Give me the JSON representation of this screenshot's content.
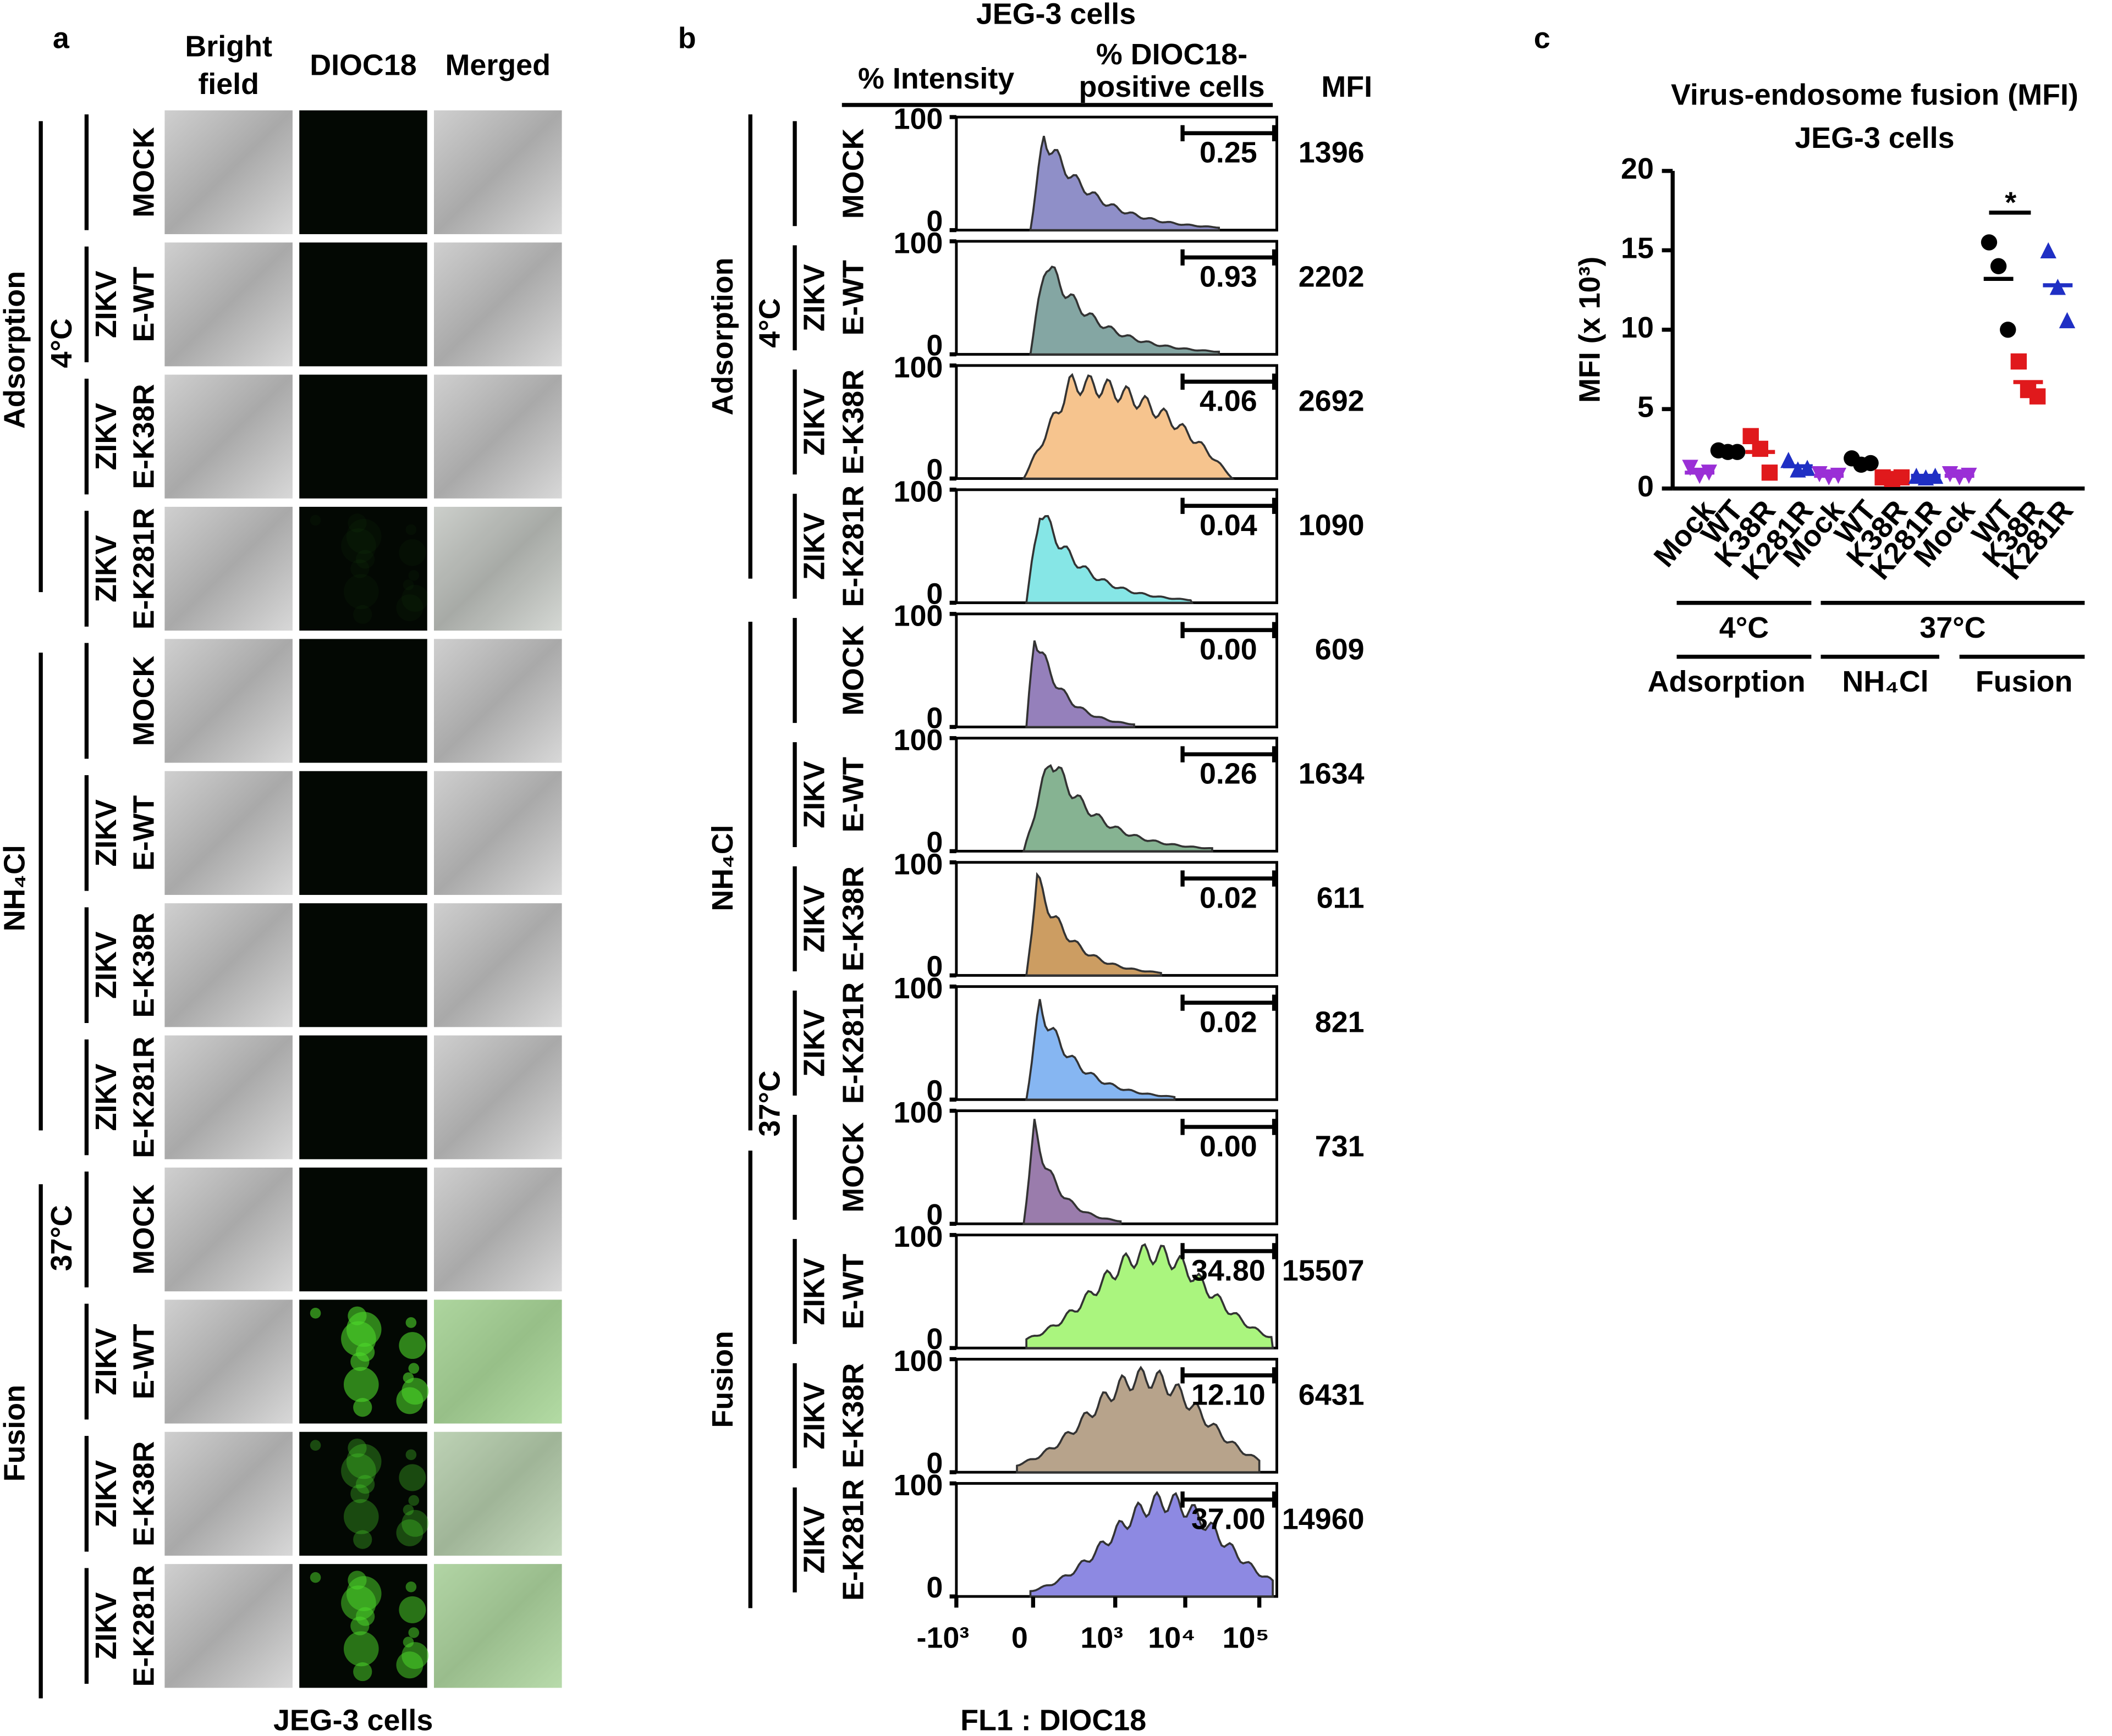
{
  "panel_a": {
    "label": "a",
    "columns": [
      [
        "Bright",
        "field"
      ],
      [
        "DIOC18"
      ],
      [
        "Merged"
      ]
    ],
    "rows": [
      [
        "MOCK"
      ],
      [
        "ZIKV",
        "E-WT"
      ],
      [
        "ZIKV",
        "E-K38R"
      ],
      [
        "ZIKV",
        "E-K281R"
      ],
      [
        "MOCK"
      ],
      [
        "ZIKV",
        "E-WT"
      ],
      [
        "ZIKV",
        "E-K38R"
      ],
      [
        "ZIKV",
        "E-K281R"
      ],
      [
        "MOCK"
      ],
      [
        "ZIKV",
        "E-WT"
      ],
      [
        "ZIKV",
        "E-K38R"
      ],
      [
        "ZIKV",
        "E-K281R"
      ]
    ],
    "groups": [
      "Adsorption",
      "NH₄Cl",
      "Fusion"
    ],
    "temperatures": [
      "4°C",
      "37°C"
    ],
    "footer": "JEG-3 cells"
  },
  "panel_b": {
    "label": "b",
    "title": "JEG-3 cells",
    "header_intensity": "% Intensity",
    "header_positive": [
      "% DIOC18-",
      "positive cells"
    ],
    "header_mfi": "MFI",
    "rows": [
      {
        "label": [
          "MOCK"
        ],
        "percent": "0.25",
        "mfi": 1396,
        "color": "#8f8fc8"
      },
      {
        "label": [
          "ZIKV",
          "E-WT"
        ],
        "percent": "0.93",
        "mfi": 2202,
        "color": "#84a6a3"
      },
      {
        "label": [
          "ZIKV",
          "E-K38R"
        ],
        "percent": "4.06",
        "mfi": 2692,
        "color": "#f6c48e"
      },
      {
        "label": [
          "ZIKV",
          "E-K281R"
        ],
        "percent": "0.04",
        "mfi": 1090,
        "color": "#86e6e6"
      },
      {
        "label": [
          "MOCK"
        ],
        "percent": "0.00",
        "mfi": 609,
        "color": "#9580bb"
      },
      {
        "label": [
          "ZIKV",
          "E-WT"
        ],
        "percent": "0.26",
        "mfi": 1634,
        "color": "#86b392"
      },
      {
        "label": [
          "ZIKV",
          "E-K38R"
        ],
        "percent": "0.02",
        "mfi": 611,
        "color": "#cc9d62"
      },
      {
        "label": [
          "ZIKV",
          "E-K281R"
        ],
        "percent": "0.02",
        "mfi": 821,
        "color": "#86b6f2"
      },
      {
        "label": [
          "MOCK"
        ],
        "percent": "0.00",
        "mfi": 731,
        "color": "#9a7cac"
      },
      {
        "label": [
          "ZIKV",
          "E-WT"
        ],
        "percent": "34.80",
        "mfi": 15507,
        "color": "#aaf57e"
      },
      {
        "label": [
          "ZIKV",
          "E-K38R"
        ],
        "percent": "12.10",
        "mfi": 6431,
        "color": "#b7a38b"
      },
      {
        "label": [
          "ZIKV",
          "E-K281R"
        ],
        "percent": "37.00",
        "mfi": 14960,
        "color": "#8d89e2"
      }
    ],
    "yticks": [
      100,
      0
    ],
    "xticks": [
      "-10³",
      "0",
      "10³",
      "10⁴",
      "10⁵"
    ],
    "xlabel": "FL1 : DIOC18",
    "groups": [
      "Adsorption",
      "NH₄Cl",
      "Fusion"
    ],
    "temperatures": [
      "4°C",
      "37°C"
    ]
  },
  "chart_data": {
    "type": "scatter",
    "label": "c",
    "title": [
      "Virus-endosome fusion (MFI)",
      "JEG-3 cells"
    ],
    "ylabel": "MFI (x 10³)",
    "ylim": [
      0,
      20
    ],
    "yticks": [
      0,
      5,
      10,
      15,
      20
    ],
    "categories": [
      "Mock",
      "WT",
      "K38R",
      "K281R",
      "Mock",
      "WT",
      "K38R",
      "K281R",
      "Mock",
      "WT",
      "K38R",
      "K281R"
    ],
    "points": [
      [
        1.3,
        0.8,
        1.0
      ],
      [
        2.4,
        2.3,
        2.3
      ],
      [
        3.3,
        2.5,
        1.0
      ],
      [
        1.8,
        1.2,
        1.3
      ],
      [
        0.9,
        0.7,
        0.8
      ],
      [
        1.9,
        1.5,
        1.6
      ],
      [
        0.7,
        0.6,
        0.7
      ],
      [
        0.8,
        0.7,
        0.8
      ],
      [
        0.9,
        0.7,
        0.8
      ],
      [
        15.5,
        14.0,
        10.0
      ],
      [
        8.0,
        6.2,
        5.8
      ],
      [
        15.0,
        12.7,
        10.6
      ]
    ],
    "means": [
      1.0,
      2.3,
      2.3,
      1.4,
      0.8,
      1.7,
      0.7,
      0.8,
      0.8,
      13.2,
      6.7,
      12.8
    ],
    "colors": [
      "#9a2fd6",
      "#000000",
      "#e0191c",
      "#1f2fc4",
      "#9a2fd6",
      "#000000",
      "#e0191c",
      "#1f2fc4",
      "#9a2fd6",
      "#000000",
      "#e0191c",
      "#1f2fc4"
    ],
    "markers": [
      "triangle-down",
      "circle",
      "square",
      "triangle",
      "triangle-down",
      "circle",
      "square",
      "triangle",
      "triangle-down",
      "circle",
      "square",
      "triangle"
    ],
    "significance": "*",
    "temperature_groups": [
      "4°C",
      "37°C"
    ],
    "condition_groups": [
      "Adsorption",
      "NH₄Cl",
      "Fusion"
    ]
  }
}
